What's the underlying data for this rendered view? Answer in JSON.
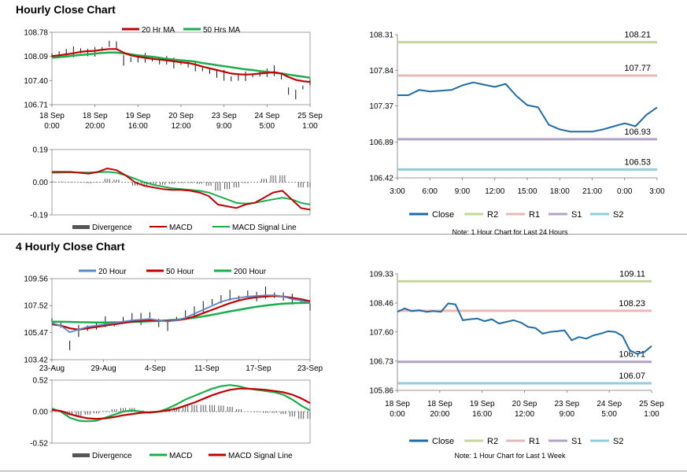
{
  "sections": {
    "hourly_title": "Hourly Close Chart",
    "four_hourly_title": "4 Hourly Close Chart"
  },
  "colors": {
    "red": "#c00000",
    "green": "#1aad4b",
    "blue": "#5b86c5",
    "dark_blue": "#1f6ba6",
    "r2": "#c3d69b",
    "r1": "#e6b9b8",
    "s1": "#b3a2c7",
    "s2": "#93cddd",
    "grid": "#888888"
  },
  "chart_data": [
    {
      "id": "hourly_price",
      "type": "line",
      "title": "",
      "legend": [
        "20 Hr MA",
        "50 Hrs MA"
      ],
      "legend_position": "top",
      "y_ticks": [
        "108.78",
        "108.09",
        "107.40",
        "106.71"
      ],
      "ylim": [
        106.71,
        108.78
      ],
      "x_ticks": [
        [
          "18 Sep",
          "0:00"
        ],
        [
          "18 Sep",
          "20:00"
        ],
        [
          "19 Sep",
          "16:00"
        ],
        [
          "20 Sep",
          "12:00"
        ],
        [
          "23 Sep",
          "9:00"
        ],
        [
          "24 Sep",
          "5:00"
        ],
        [
          "25 Sep",
          "1:00"
        ]
      ],
      "series": [
        {
          "name": "Close",
          "values": [
            108.12,
            108.15,
            108.18,
            108.22,
            108.25,
            108.2,
            108.22,
            108.3,
            108.45,
            108.4,
            107.98,
            108.0,
            108.02,
            108.05,
            108.0,
            107.95,
            107.98,
            107.9,
            107.92,
            107.88,
            107.8,
            107.72,
            107.68,
            107.6,
            107.55,
            107.45,
            107.5,
            107.52,
            107.55,
            107.6,
            107.62,
            107.68,
            107.5,
            107.1,
            107.0,
            107.2,
            107.35
          ]
        },
        {
          "name": "20 Hr MA",
          "values": [
            108.1,
            108.12,
            108.15,
            108.18,
            108.22,
            108.24,
            108.25,
            108.28,
            108.3,
            108.3,
            108.2,
            108.12,
            108.08,
            108.05,
            108.02,
            108.0,
            107.98,
            107.95,
            107.92,
            107.9,
            107.86,
            107.8,
            107.75,
            107.7,
            107.65,
            107.6,
            107.58,
            107.57,
            107.58,
            107.6,
            107.62,
            107.64,
            107.6,
            107.5,
            107.42,
            107.38,
            107.36
          ]
        },
        {
          "name": "50 Hrs MA",
          "values": [
            108.05,
            108.07,
            108.09,
            108.11,
            108.13,
            108.15,
            108.17,
            108.19,
            108.2,
            108.2,
            108.18,
            108.15,
            108.12,
            108.1,
            108.08,
            108.05,
            108.02,
            108.0,
            107.98,
            107.96,
            107.94,
            107.9,
            107.87,
            107.84,
            107.81,
            107.78,
            107.75,
            107.72,
            107.7,
            107.67,
            107.65,
            107.62,
            107.6,
            107.57,
            107.54,
            107.51,
            107.48
          ]
        }
      ]
    },
    {
      "id": "hourly_macd",
      "type": "line",
      "legend": [
        "Divergence",
        "MACD",
        "MACD Signal Line"
      ],
      "legend_position": "bottom",
      "y_ticks": [
        "0.19",
        "0.00",
        "-0.19"
      ],
      "ylim": [
        -0.19,
        0.19
      ],
      "series": [
        {
          "name": "MACD",
          "values": [
            0.06,
            0.06,
            0.06,
            0.055,
            0.05,
            0.06,
            0.08,
            0.07,
            0.04,
            0.0,
            -0.02,
            -0.03,
            -0.04,
            -0.045,
            -0.045,
            -0.05,
            -0.06,
            -0.08,
            -0.13,
            -0.14,
            -0.15,
            -0.13,
            -0.12,
            -0.09,
            -0.06,
            -0.05,
            -0.1,
            -0.15,
            -0.16
          ]
        },
        {
          "name": "MACD Signal Line",
          "values": [
            0.055,
            0.056,
            0.057,
            0.057,
            0.056,
            0.058,
            0.06,
            0.055,
            0.04,
            0.02,
            0.0,
            -0.015,
            -0.025,
            -0.035,
            -0.04,
            -0.045,
            -0.05,
            -0.06,
            -0.08,
            -0.1,
            -0.12,
            -0.125,
            -0.12,
            -0.11,
            -0.1,
            -0.09,
            -0.1,
            -0.12,
            -0.13
          ]
        },
        {
          "name": "Divergence",
          "values": [
            0.005,
            0.004,
            0.003,
            -0.002,
            -0.006,
            0.002,
            0.02,
            0.015,
            0.0,
            -0.02,
            -0.02,
            -0.015,
            -0.015,
            -0.01,
            -0.005,
            -0.005,
            -0.01,
            -0.02,
            -0.05,
            -0.04,
            -0.03,
            -0.005,
            0.0,
            0.02,
            0.04,
            0.04,
            0.0,
            -0.03,
            -0.03
          ]
        }
      ]
    },
    {
      "id": "hourly_pivot",
      "type": "line",
      "note": "Note: 1 Hour Chart for Last 24 Hours",
      "legend": [
        "Close",
        "R2",
        "R1",
        "S1",
        "S2"
      ],
      "y_ticks": [
        "108.31",
        "107.84",
        "107.37",
        "106.89",
        "106.42"
      ],
      "ylim": [
        106.42,
        108.31
      ],
      "x_ticks": [
        "3:00",
        "6:00",
        "9:00",
        "12:00",
        "15:00",
        "18:00",
        "21:00",
        "0:00",
        "3:00"
      ],
      "levels": [
        {
          "name": "R2",
          "value": 108.21,
          "label": "108.21"
        },
        {
          "name": "R1",
          "value": 107.77,
          "label": "107.77"
        },
        {
          "name": "S1",
          "value": 106.93,
          "label": "106.93"
        },
        {
          "name": "S2",
          "value": 106.53,
          "label": "106.53"
        }
      ],
      "series": [
        {
          "name": "Close",
          "x": [
            0,
            1,
            2,
            3,
            4,
            5,
            6,
            7,
            8,
            9,
            10,
            11,
            12,
            13,
            14,
            15,
            16,
            17,
            18,
            19,
            20,
            21,
            22,
            23,
            24
          ],
          "values": [
            107.51,
            107.51,
            107.58,
            107.56,
            107.57,
            107.58,
            107.64,
            107.68,
            107.65,
            107.62,
            107.66,
            107.5,
            107.38,
            107.35,
            107.12,
            107.06,
            107.03,
            107.03,
            107.03,
            107.06,
            107.1,
            107.14,
            107.1,
            107.25,
            107.35
          ]
        }
      ]
    },
    {
      "id": "four_hourly_price",
      "type": "line",
      "legend": [
        "20 Hour",
        "50 Hour",
        "200 Hour"
      ],
      "legend_position": "top",
      "y_ticks": [
        "109.56",
        "107.52",
        "105.47",
        "103.42"
      ],
      "ylim": [
        103.42,
        109.56
      ],
      "x_ticks": [
        "23-Aug",
        "29-Aug",
        "4-Sep",
        "11-Sep",
        "17-Sep",
        "23-Sep"
      ],
      "series": [
        {
          "name": "Close",
          "values": [
            106.4,
            106.1,
            104.5,
            105.6,
            105.8,
            106.0,
            106.3,
            106.1,
            106.4,
            106.6,
            106.5,
            106.8,
            106.2,
            106.0,
            106.5,
            106.9,
            107.1,
            107.4,
            107.8,
            108.0,
            108.3,
            108.1,
            108.4,
            108.2,
            108.5,
            108.3,
            108.2,
            108.0,
            107.8,
            107.4
          ]
        },
        {
          "name": "20 Hour",
          "values": [
            106.2,
            106.0,
            105.5,
            105.7,
            105.9,
            106.0,
            106.1,
            106.2,
            106.3,
            106.4,
            106.45,
            106.5,
            106.4,
            106.3,
            106.4,
            106.6,
            106.9,
            107.2,
            107.5,
            107.8,
            108.0,
            108.1,
            108.2,
            108.25,
            108.3,
            108.3,
            108.2,
            108.0,
            107.9,
            107.7
          ]
        },
        {
          "name": "50 Hour",
          "values": [
            106.1,
            106.0,
            105.8,
            105.7,
            105.8,
            105.9,
            106.0,
            106.1,
            106.2,
            106.3,
            106.35,
            106.4,
            106.38,
            106.35,
            106.4,
            106.5,
            106.7,
            106.95,
            107.2,
            107.45,
            107.7,
            107.9,
            108.05,
            108.15,
            108.2,
            108.25,
            108.2,
            108.1,
            108.0,
            107.85
          ]
        },
        {
          "name": "200 Hour",
          "values": [
            106.3,
            106.3,
            106.28,
            106.26,
            106.25,
            106.24,
            106.24,
            106.25,
            106.26,
            106.28,
            106.3,
            106.33,
            106.36,
            106.4,
            106.45,
            106.52,
            106.6,
            106.7,
            106.82,
            106.95,
            107.08,
            107.2,
            107.32,
            107.43,
            107.52,
            107.6,
            107.66,
            107.7,
            107.72,
            107.72
          ]
        }
      ]
    },
    {
      "id": "four_hourly_macd",
      "type": "line",
      "legend": [
        "Divergence",
        "MACD",
        "MACD Signal Line"
      ],
      "legend_position": "bottom",
      "y_ticks": [
        "0.52",
        "0.00",
        "-0.52"
      ],
      "ylim": [
        -0.52,
        0.52
      ],
      "series": [
        {
          "name": "MACD",
          "values": [
            0.05,
            0.0,
            -0.1,
            -0.15,
            -0.16,
            -0.15,
            -0.1,
            -0.05,
            0.0,
            0.02,
            0.0,
            -0.02,
            0.0,
            0.05,
            0.12,
            0.2,
            0.26,
            0.32,
            0.38,
            0.42,
            0.44,
            0.42,
            0.38,
            0.36,
            0.34,
            0.32,
            0.28,
            0.2,
            0.1,
            0.02
          ]
        },
        {
          "name": "MACD Signal Line",
          "values": [
            0.03,
            0.01,
            -0.04,
            -0.08,
            -0.11,
            -0.12,
            -0.11,
            -0.09,
            -0.06,
            -0.04,
            -0.02,
            -0.01,
            0.0,
            0.02,
            0.05,
            0.1,
            0.15,
            0.21,
            0.27,
            0.32,
            0.36,
            0.38,
            0.38,
            0.37,
            0.36,
            0.34,
            0.32,
            0.28,
            0.22,
            0.14
          ]
        },
        {
          "name": "Divergence",
          "values": [
            0.02,
            -0.01,
            -0.06,
            -0.07,
            -0.05,
            -0.03,
            0.01,
            0.04,
            0.06,
            0.06,
            0.02,
            -0.01,
            0.0,
            0.03,
            0.07,
            0.1,
            0.11,
            0.11,
            0.11,
            0.1,
            0.08,
            0.04,
            0.0,
            -0.01,
            -0.02,
            -0.02,
            -0.04,
            -0.08,
            -0.12,
            -0.12
          ]
        }
      ]
    },
    {
      "id": "four_hourly_pivot",
      "type": "line",
      "note": "Note: 1 Hour Chart for Last 1 Week",
      "legend": [
        "Close",
        "R2",
        "R1",
        "S1",
        "S2"
      ],
      "y_ticks": [
        "109.33",
        "108.46",
        "107.60",
        "106.73",
        "105.86"
      ],
      "ylim": [
        105.86,
        109.33
      ],
      "x_ticks": [
        [
          "18 Sep",
          "0:00"
        ],
        [
          "18 Sep",
          "20:00"
        ],
        [
          "19 Sep",
          "16:00"
        ],
        [
          "20 Sep",
          "12:00"
        ],
        [
          "23 Sep",
          "9:00"
        ],
        [
          "24 Sep",
          "5:00"
        ],
        [
          "25 Sep",
          "1:00"
        ]
      ],
      "levels": [
        {
          "name": "R2",
          "value": 109.11,
          "label": "109.11"
        },
        {
          "name": "R1",
          "value": 108.23,
          "label": "108.23"
        },
        {
          "name": "S1",
          "value": 106.71,
          "label": "106.71"
        },
        {
          "name": "S2",
          "value": 106.07,
          "label": "106.07"
        }
      ],
      "series": [
        {
          "name": "Close",
          "values": [
            108.2,
            108.3,
            108.22,
            108.25,
            108.2,
            108.22,
            108.2,
            108.45,
            108.42,
            107.95,
            107.98,
            108.0,
            107.92,
            107.98,
            107.85,
            107.9,
            107.95,
            107.88,
            107.75,
            107.72,
            107.55,
            107.6,
            107.62,
            107.65,
            107.35,
            107.45,
            107.4,
            107.5,
            107.55,
            107.62,
            107.6,
            107.48,
            107.05,
            106.95,
            107.0,
            107.18
          ]
        }
      ]
    }
  ]
}
